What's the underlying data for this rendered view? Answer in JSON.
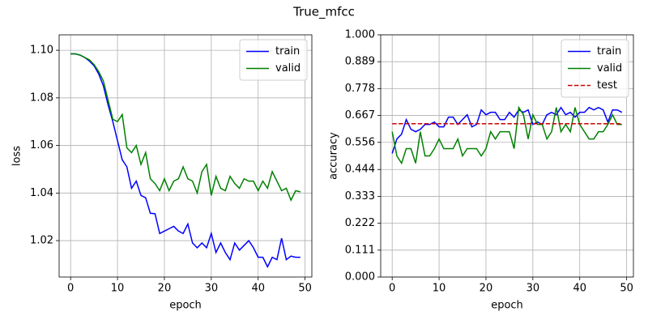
{
  "title": "True_mfcc",
  "chart_data": [
    {
      "type": "line",
      "xlabel": "epoch",
      "ylabel": "loss",
      "x": [
        0,
        1,
        2,
        3,
        4,
        5,
        6,
        7,
        8,
        9,
        10,
        11,
        12,
        13,
        14,
        15,
        16,
        17,
        18,
        19,
        20,
        21,
        22,
        23,
        24,
        25,
        26,
        27,
        28,
        29,
        30,
        31,
        32,
        33,
        34,
        35,
        36,
        37,
        38,
        39,
        40,
        41,
        42,
        43,
        44,
        45,
        46,
        47,
        48,
        49
      ],
      "xlim": [
        -2.45,
        51.45
      ],
      "xticks": [
        0,
        10,
        20,
        30,
        40,
        50
      ],
      "ylim": [
        1.0047,
        1.1065
      ],
      "yticks": [
        1.02,
        1.04,
        1.06,
        1.08,
        {
          "value": 1.1,
          "label": "1.10"
        }
      ],
      "grid": true,
      "legend": "upper right",
      "series": [
        {
          "name": "train",
          "color": "#0000ff",
          "linestyle": "solid",
          "values": [
            1.0985,
            1.0985,
            1.098,
            1.097,
            1.0955,
            1.0935,
            1.09,
            1.085,
            1.077,
            1.07,
            1.062,
            1.054,
            1.051,
            1.042,
            1.045,
            1.039,
            1.038,
            1.0315,
            1.0313,
            1.023,
            1.024,
            1.025,
            1.026,
            1.024,
            1.023,
            1.027,
            1.019,
            1.017,
            1.019,
            1.017,
            1.023,
            1.015,
            1.019,
            1.015,
            1.012,
            1.019,
            1.016,
            1.018,
            1.02,
            1.017,
            1.013,
            1.013,
            1.009,
            1.013,
            1.012,
            1.021,
            1.012,
            1.0135,
            1.013,
            1.013
          ]
        },
        {
          "name": "valid",
          "color": "#008000",
          "linestyle": "solid",
          "values": [
            1.0985,
            1.0985,
            1.098,
            1.097,
            1.096,
            1.094,
            1.091,
            1.087,
            1.079,
            1.071,
            1.07,
            1.073,
            1.059,
            1.057,
            1.06,
            1.052,
            1.057,
            1.046,
            1.044,
            1.041,
            1.046,
            1.041,
            1.045,
            1.046,
            1.051,
            1.046,
            1.045,
            1.04,
            1.049,
            1.052,
            1.039,
            1.047,
            1.042,
            1.041,
            1.047,
            1.044,
            1.042,
            1.046,
            1.045,
            1.045,
            1.041,
            1.045,
            1.042,
            1.049,
            1.045,
            1.041,
            1.042,
            1.037,
            1.041,
            1.0405
          ]
        }
      ]
    },
    {
      "type": "line",
      "xlabel": "epoch",
      "ylabel": "accuracy",
      "x": [
        0,
        1,
        2,
        3,
        4,
        5,
        6,
        7,
        8,
        9,
        10,
        11,
        12,
        13,
        14,
        15,
        16,
        17,
        18,
        19,
        20,
        21,
        22,
        23,
        24,
        25,
        26,
        27,
        28,
        29,
        30,
        31,
        32,
        33,
        34,
        35,
        36,
        37,
        38,
        39,
        40,
        41,
        42,
        43,
        44,
        45,
        46,
        47,
        48,
        49
      ],
      "xlim": [
        -2.45,
        51.45
      ],
      "xticks": [
        0,
        10,
        20,
        30,
        40,
        50
      ],
      "ylim": [
        0,
        1
      ],
      "yticks": [
        {
          "value": 0,
          "label": "0.000"
        },
        0.111,
        0.222,
        0.333,
        0.444,
        0.556,
        0.667,
        0.778,
        0.889,
        {
          "value": 1,
          "label": "1.000"
        }
      ],
      "grid": true,
      "legend": "upper right",
      "series": [
        {
          "name": "train",
          "color": "#0000ff",
          "linestyle": "solid",
          "values": [
            0.51,
            0.57,
            0.59,
            0.65,
            0.61,
            0.6,
            0.61,
            0.63,
            0.63,
            0.64,
            0.62,
            0.62,
            0.66,
            0.66,
            0.63,
            0.65,
            0.67,
            0.62,
            0.63,
            0.69,
            0.67,
            0.68,
            0.68,
            0.65,
            0.65,
            0.68,
            0.66,
            0.69,
            0.68,
            0.69,
            0.63,
            0.64,
            0.63,
            0.67,
            0.68,
            0.67,
            0.7,
            0.67,
            0.68,
            0.66,
            0.68,
            0.68,
            0.7,
            0.69,
            0.7,
            0.69,
            0.64,
            0.69,
            0.69,
            0.68
          ]
        },
        {
          "name": "valid",
          "color": "#008000",
          "linestyle": "solid",
          "values": [
            0.6,
            0.5,
            0.47,
            0.53,
            0.53,
            0.47,
            0.6,
            0.5,
            0.5,
            0.53,
            0.57,
            0.53,
            0.53,
            0.53,
            0.57,
            0.5,
            0.53,
            0.53,
            0.53,
            0.5,
            0.53,
            0.6,
            0.57,
            0.6,
            0.6,
            0.6,
            0.53,
            0.7,
            0.67,
            0.57,
            0.67,
            0.63,
            0.63,
            0.57,
            0.6,
            0.7,
            0.6,
            0.63,
            0.6,
            0.7,
            0.63,
            0.6,
            0.57,
            0.57,
            0.6,
            0.6,
            0.63,
            0.67,
            0.63,
            0.63
          ]
        },
        {
          "name": "test",
          "color": "#cc0000",
          "linestyle": "dashed",
          "values": [
            0.633,
            0.633,
            0.633,
            0.633,
            0.633,
            0.633,
            0.633,
            0.633,
            0.633,
            0.633,
            0.633,
            0.633,
            0.633,
            0.633,
            0.633,
            0.633,
            0.633,
            0.633,
            0.633,
            0.633,
            0.633,
            0.633,
            0.633,
            0.633,
            0.633,
            0.633,
            0.633,
            0.633,
            0.633,
            0.633,
            0.633,
            0.633,
            0.633,
            0.633,
            0.633,
            0.633,
            0.633,
            0.633,
            0.633,
            0.633,
            0.633,
            0.633,
            0.633,
            0.633,
            0.633,
            0.633,
            0.633,
            0.633,
            0.633,
            0.633
          ]
        }
      ]
    }
  ]
}
